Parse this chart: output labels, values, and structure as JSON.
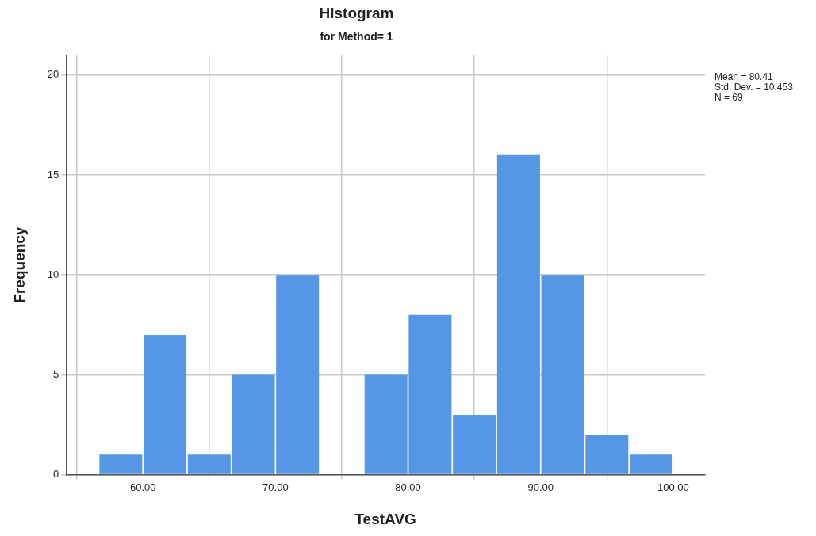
{
  "chart_data": {
    "type": "histogram",
    "title": "Histogram",
    "subtitle": "for Method= 1",
    "xlabel": "TestAVG",
    "ylabel": "Frequency",
    "bins": [
      56.67,
      60,
      63.33,
      66.67,
      70,
      73.33,
      76.67,
      80,
      83.33,
      86.67,
      90,
      93.33,
      96.67,
      100
    ],
    "values": [
      1,
      7,
      1,
      5,
      10,
      0,
      5,
      8,
      3,
      16,
      10,
      2,
      1
    ],
    "color": "#5596e6",
    "xlim": [
      54.2,
      102.4
    ],
    "xticks": [
      {
        "value": 60,
        "label": "60.00"
      },
      {
        "value": 70,
        "label": "70.00"
      },
      {
        "value": 80,
        "label": "80.00"
      },
      {
        "value": 90,
        "label": "90.00"
      },
      {
        "value": 100,
        "label": "100.00"
      }
    ],
    "ylim": [
      0,
      21
    ],
    "yticks": [
      0,
      5,
      10,
      15,
      20
    ],
    "grid": true,
    "annotations": [
      "Mean = 80.41",
      "Std. Dev. = 10.453",
      "N = 69"
    ]
  }
}
